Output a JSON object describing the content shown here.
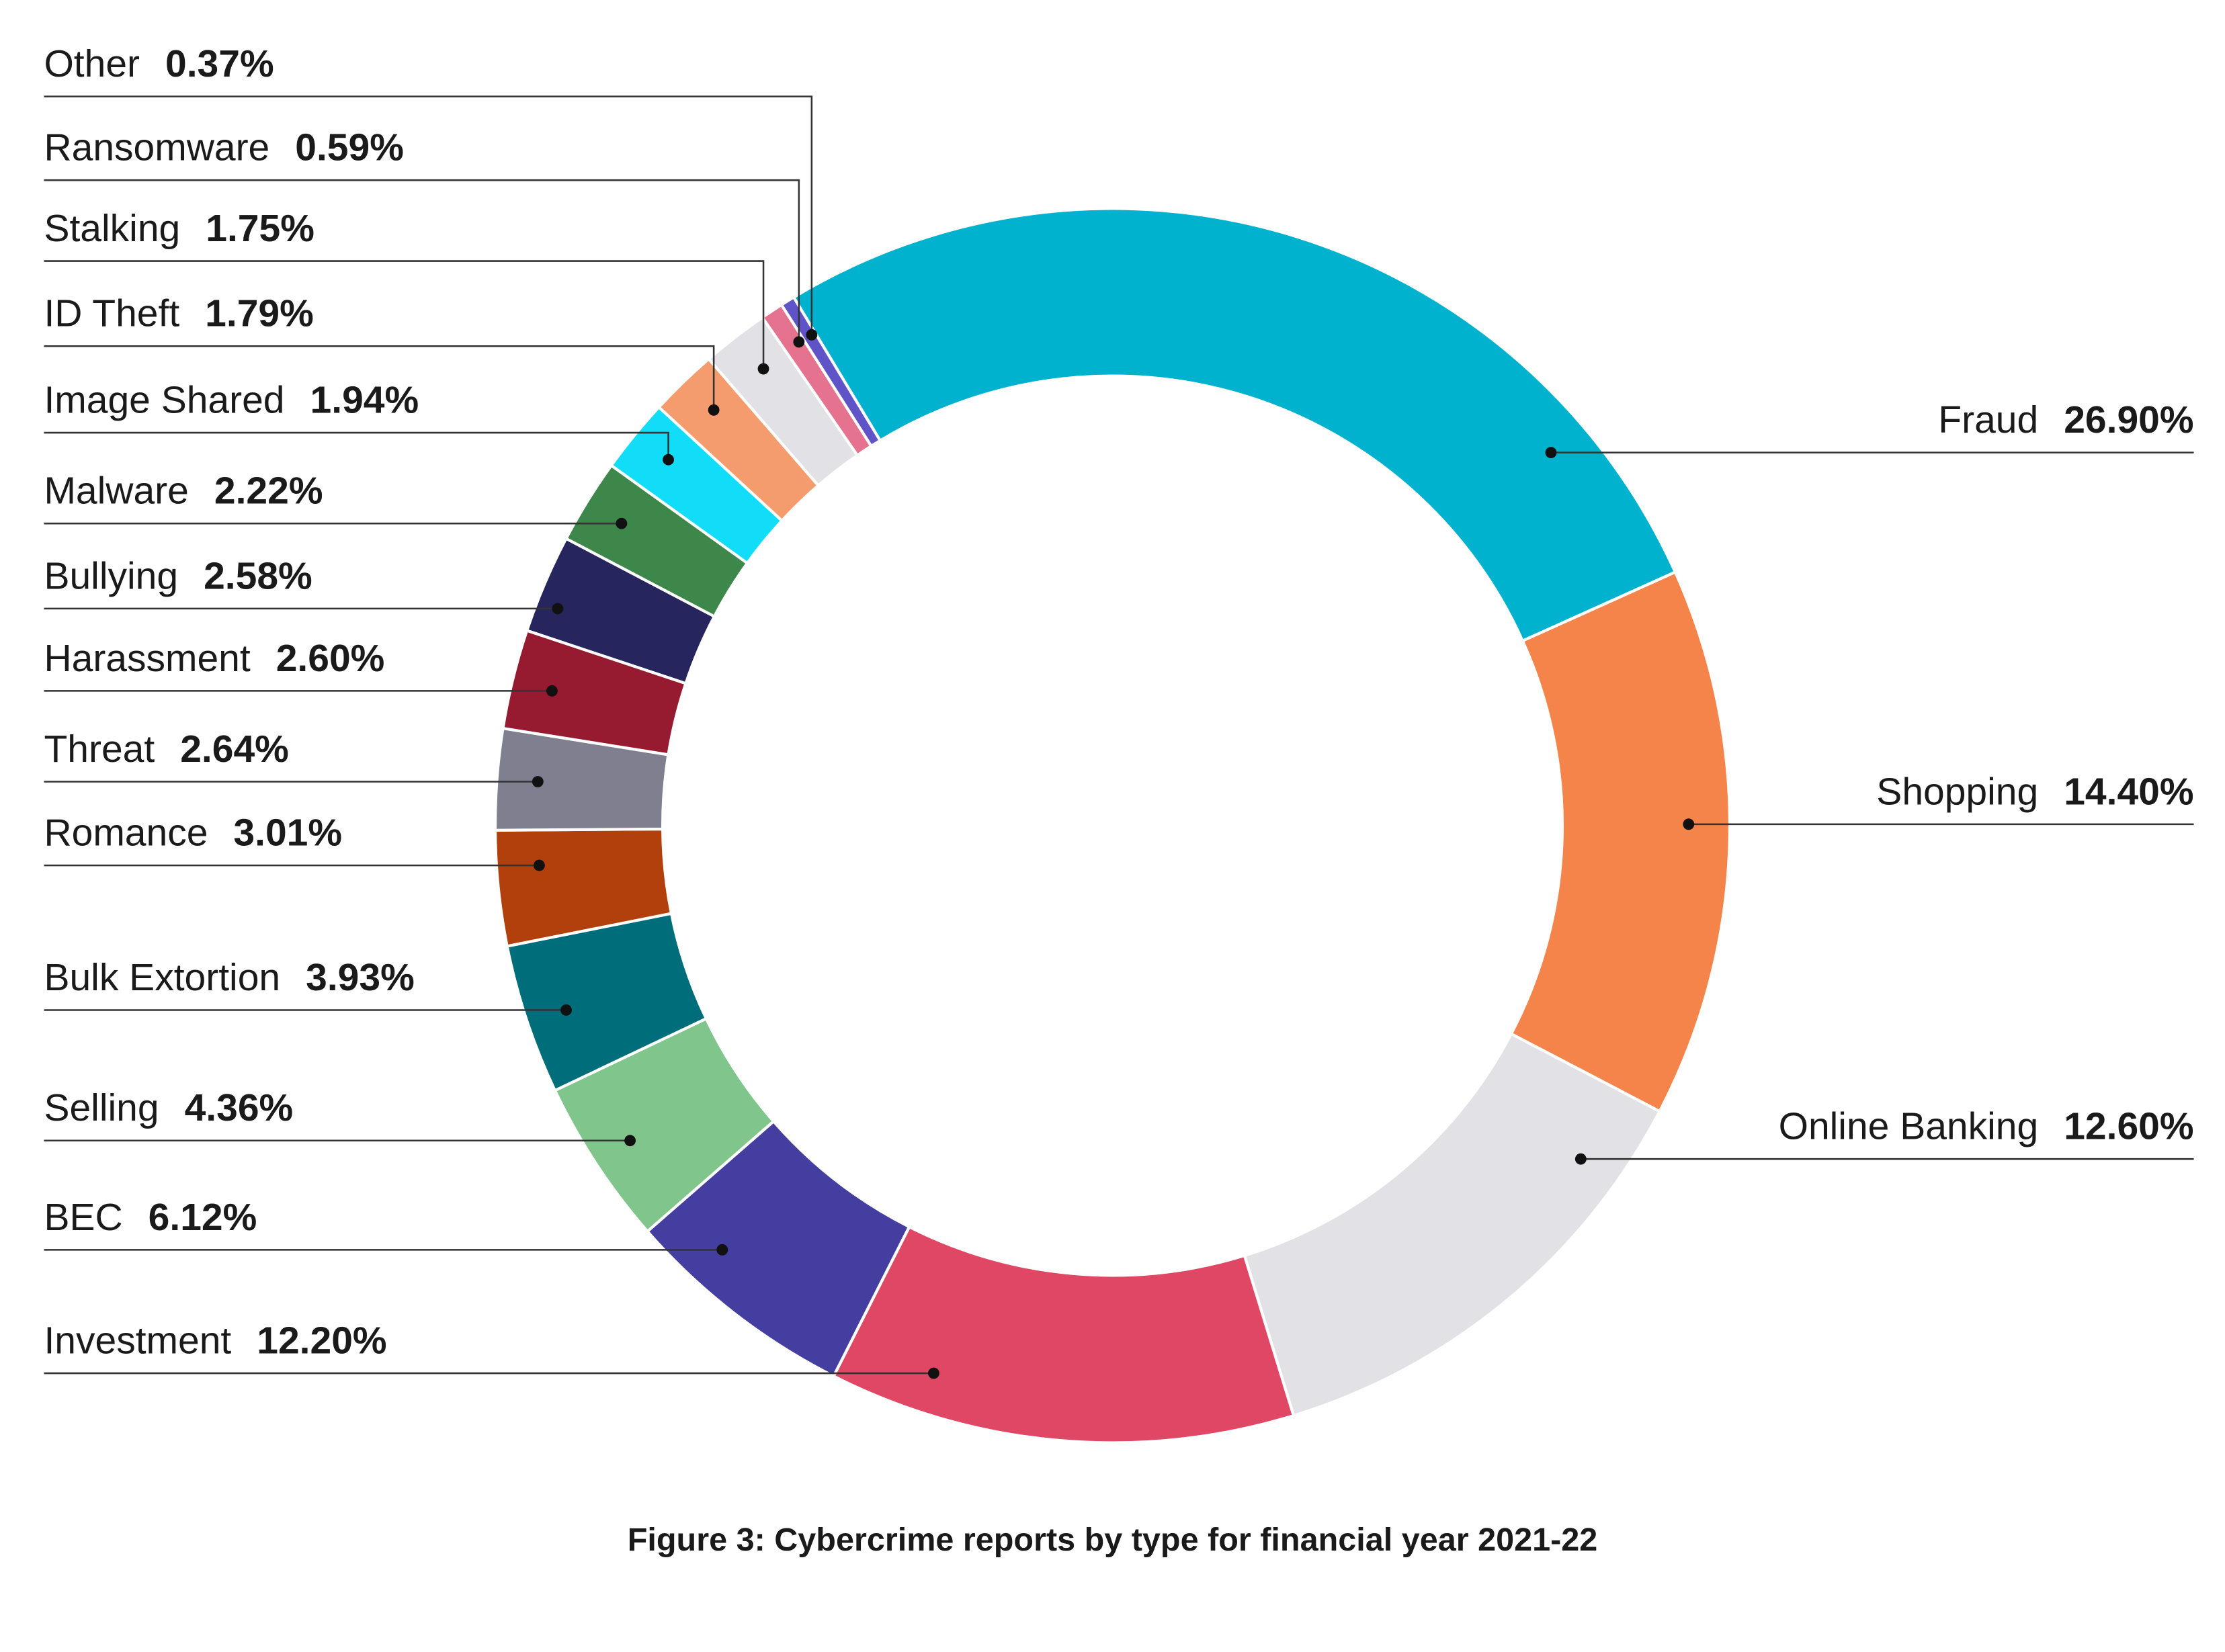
{
  "chart_data": {
    "type": "pie",
    "title": "Figure 3: Cybercrime reports by type for financial year 2021-22",
    "categories": [
      "Fraud",
      "Shopping",
      "Online Banking",
      "Investment",
      "BEC",
      "Selling",
      "Bulk Extortion",
      "Romance",
      "Threat",
      "Harassment",
      "Bullying",
      "Malware",
      "Image Shared",
      "ID Theft",
      "Stalking",
      "Ransomware",
      "Other"
    ],
    "values": [
      26.9,
      14.4,
      12.6,
      12.2,
      6.12,
      4.36,
      3.93,
      3.01,
      2.64,
      2.6,
      2.58,
      2.22,
      1.94,
      1.79,
      1.75,
      0.59,
      0.37
    ],
    "value_labels": [
      "26.90%",
      "14.40%",
      "12.60%",
      "12.20%",
      "6.12%",
      "4.36%",
      "3.93%",
      "3.01%",
      "2.64%",
      "2.60%",
      "2.58%",
      "2.22%",
      "1.94%",
      "1.79%",
      "1.75%",
      "0.59%",
      "0.37%"
    ],
    "colors": [
      "#00b2ce",
      "#f4844a",
      "#e1e1e6",
      "#e04764",
      "#433ea0",
      "#80c58b",
      "#006d7a",
      "#b1400c",
      "#7f7f8f",
      "#961b30",
      "#27255e",
      "#3d874a",
      "#12ddf9",
      "#f49c6d",
      "#e1e1e6",
      "#e57390",
      "#5e54c8"
    ],
    "donut": true
  }
}
